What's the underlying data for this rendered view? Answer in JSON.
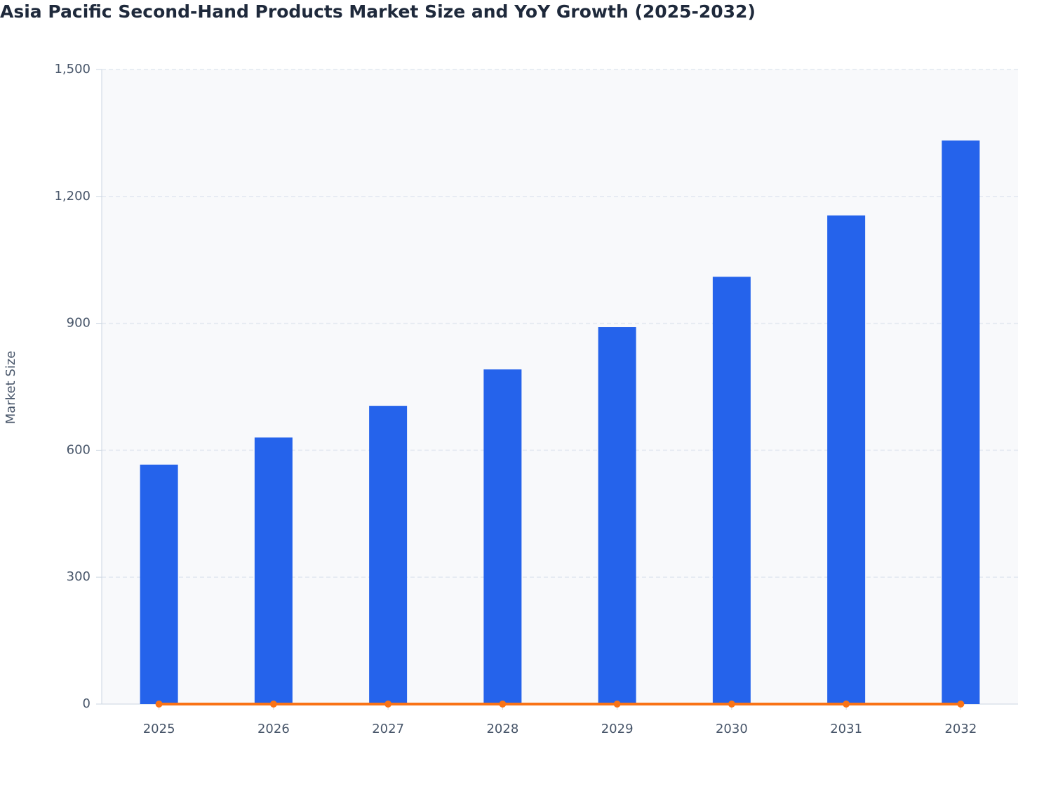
{
  "chart_data": {
    "type": "bar_line",
    "title": "Asia Pacific Second-Hand Products Market Size and YoY Growth (2025-2032)",
    "y_label": "Market Size",
    "categories": [
      "2025",
      "2026",
      "2027",
      "2028",
      "2029",
      "2030",
      "2031",
      "2032"
    ],
    "series": [
      {
        "type": "bar",
        "color": "#2563eb",
        "values": [
          566,
          630,
          705,
          791,
          891,
          1010,
          1155,
          1332
        ]
      },
      {
        "type": "line",
        "color": "#f97316",
        "values": [
          0,
          0,
          0,
          0,
          0,
          0,
          0,
          0
        ]
      }
    ],
    "ylim": [
      0,
      1500
    ],
    "yticks": [
      0,
      300,
      600,
      900,
      {
        "value": 1200,
        "label": "1,200"
      },
      {
        "value": 1500,
        "label": "1,500"
      }
    ],
    "grid": true
  }
}
